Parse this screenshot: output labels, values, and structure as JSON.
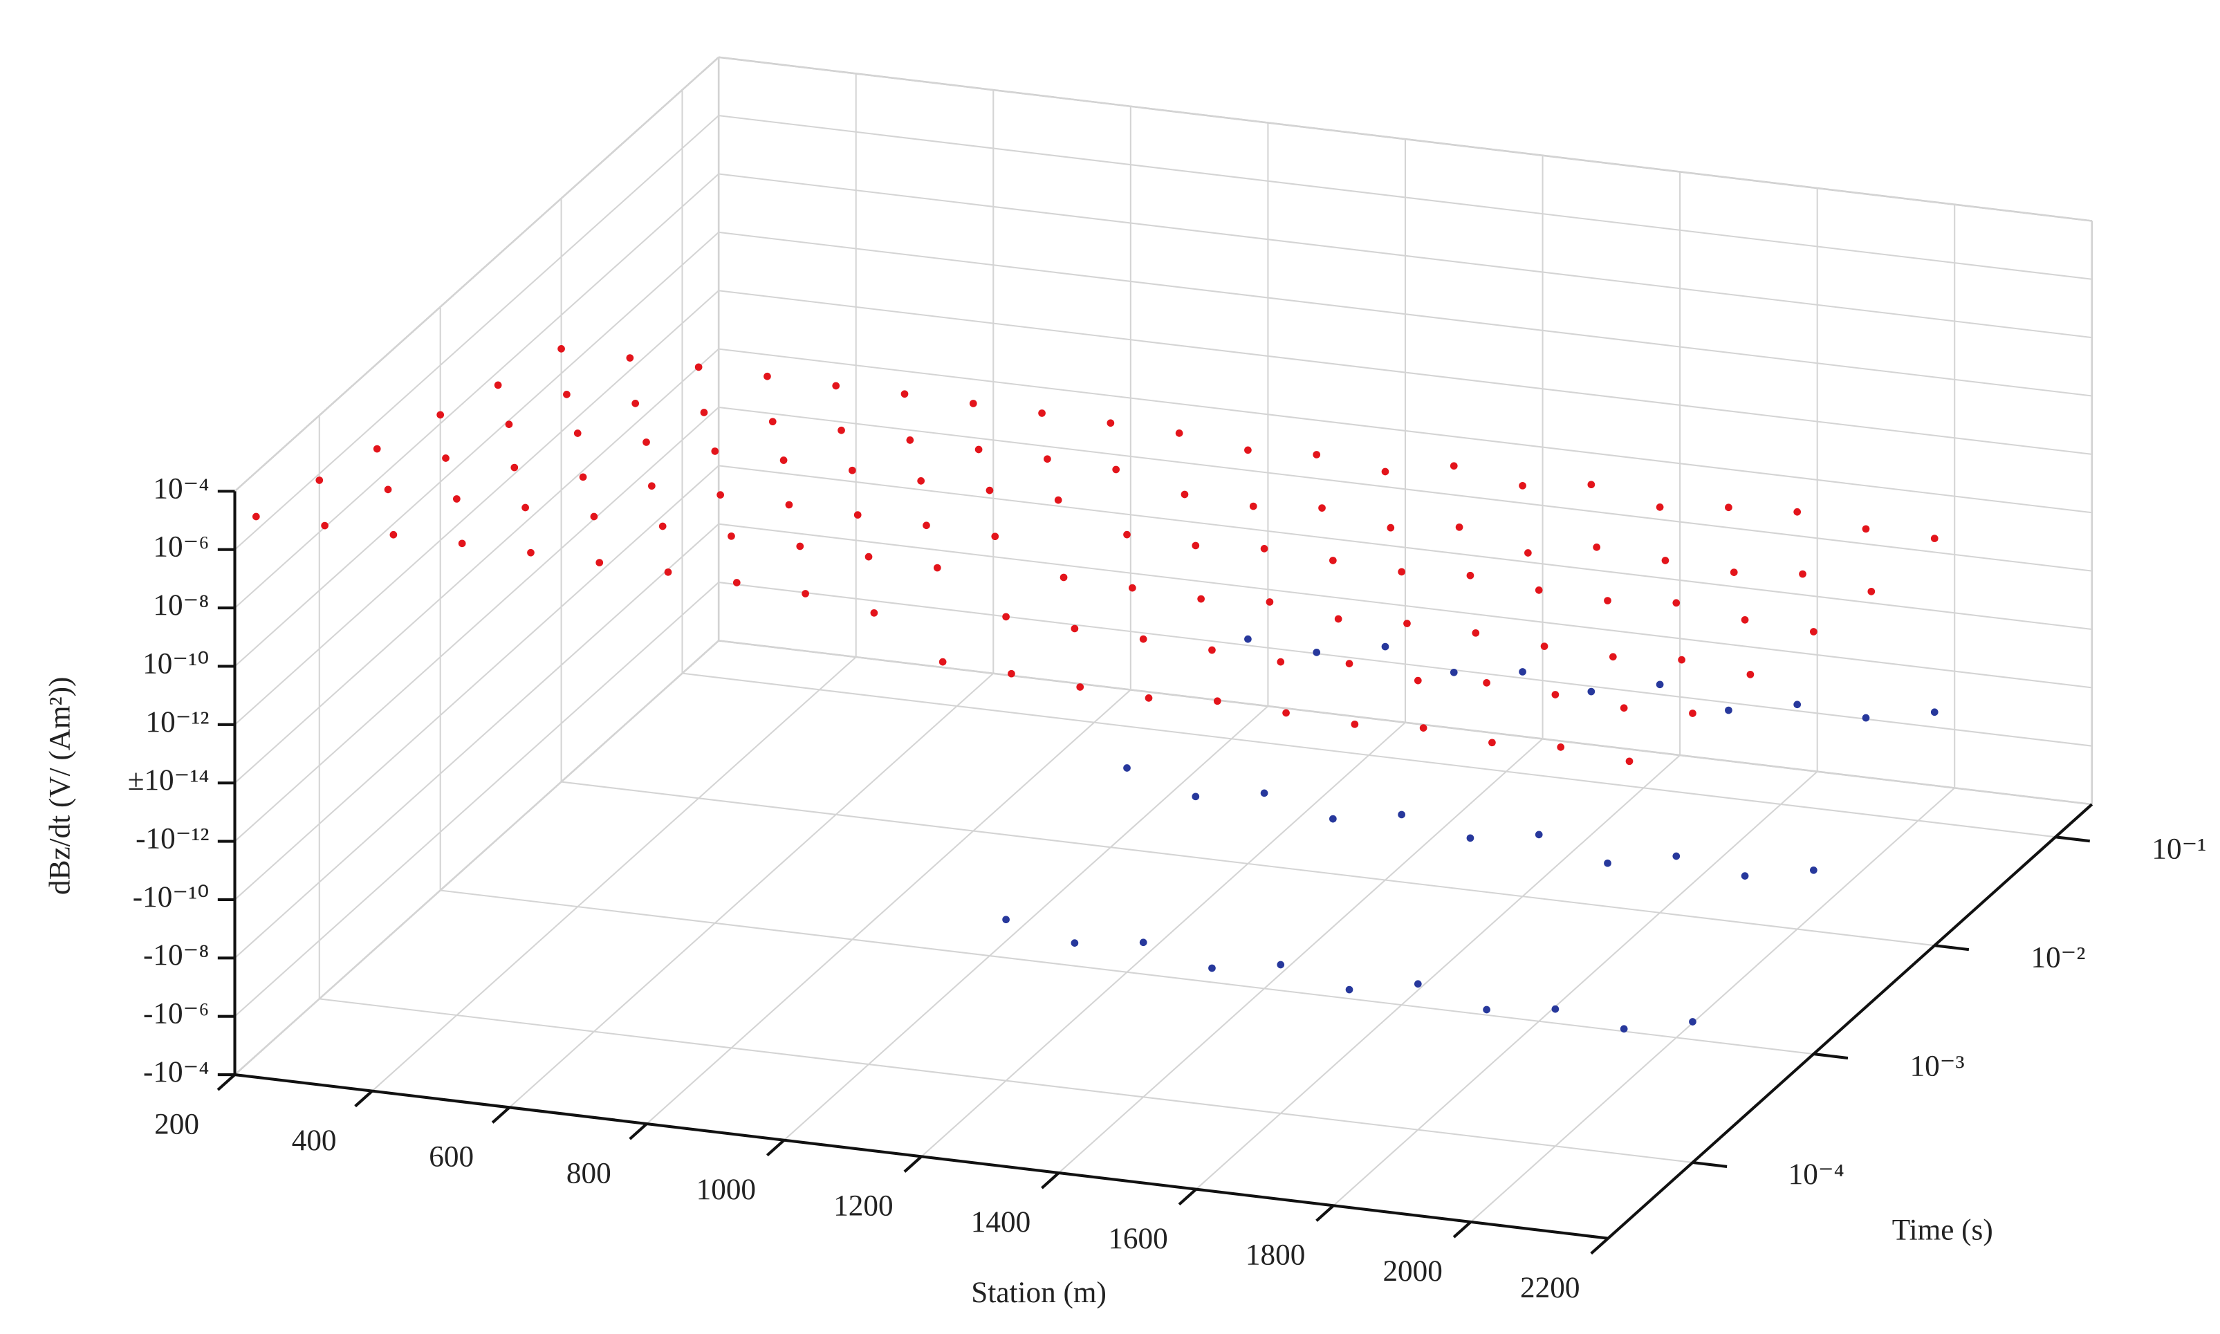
{
  "chart_data": {
    "type": "scatter3d",
    "xlabel": "Station (m)",
    "tlabel": "Time (s)",
    "zlabel": "dBz/dt (V/ (Am²))",
    "xlim": [
      200,
      2200
    ],
    "xticks": [
      200,
      400,
      600,
      800,
      1000,
      1200,
      1400,
      1600,
      1800,
      2000,
      2200
    ],
    "tlim": [
      2e-05,
      0.2
    ],
    "tscale": "log",
    "tticks": [
      {
        "value": 0.0001,
        "label": "10⁻⁴"
      },
      {
        "value": 0.001,
        "label": "10⁻³"
      },
      {
        "value": 0.01,
        "label": "10⁻²"
      },
      {
        "value": 0.1,
        "label": "10⁻¹"
      }
    ],
    "zlim": [
      -0.0001,
      0.0001
    ],
    "zscale": "symlog",
    "zlinthresh": 1e-14,
    "zticks": [
      {
        "value": 0.0001,
        "label": "10⁻⁴"
      },
      {
        "value": 1e-06,
        "label": "10⁻⁶"
      },
      {
        "value": 1e-08,
        "label": "10⁻⁸"
      },
      {
        "value": 1e-10,
        "label": "10⁻¹⁰"
      },
      {
        "value": 1e-12,
        "label": "10⁻¹²"
      },
      {
        "value": 1e-14,
        "label": "±10⁻¹⁴"
      },
      {
        "value": -1e-12,
        "label": "-10⁻¹²"
      },
      {
        "value": -1e-10,
        "label": "-10⁻¹⁰"
      },
      {
        "value": -1e-08,
        "label": "-10⁻⁸"
      },
      {
        "value": -1e-06,
        "label": "-10⁻⁶"
      },
      {
        "value": -0.0001,
        "label": "-10⁻⁴"
      }
    ],
    "grid": true,
    "series": [
      {
        "color": "#e3141b",
        "x": [
          200,
          200,
          200,
          200,
          200,
          200,
          300,
          300,
          300,
          300,
          300,
          300,
          400,
          400,
          400,
          400,
          400,
          400,
          500,
          500,
          500,
          500,
          500,
          500,
          600,
          600,
          600,
          600,
          600,
          600,
          700,
          700,
          700,
          700,
          700,
          700,
          800,
          800,
          800,
          800,
          800,
          800,
          900,
          900,
          900,
          900,
          900,
          900,
          1000,
          1000,
          1000,
          1000,
          1000,
          1000,
          1100,
          1100,
          1100,
          1100,
          1100,
          1100,
          1200,
          1200,
          1200,
          1200,
          1200,
          1200,
          1300,
          1300,
          1300,
          1300,
          1300,
          1300,
          1400,
          1400,
          1400,
          1400,
          1400,
          1400,
          1500,
          1500,
          1500,
          1500,
          1500,
          1500,
          1600,
          1600,
          1600,
          1600,
          1600,
          1600,
          1700,
          1700,
          1700,
          1700,
          1700,
          1700,
          1800,
          1800,
          1800,
          1800,
          1800,
          1800,
          1900,
          1900,
          1900,
          1900,
          1900,
          1900,
          2000,
          2000,
          2000,
          2000,
          2000,
          2000,
          2100,
          2100,
          2100,
          2100,
          2100,
          2100,
          2200,
          2200,
          2200,
          2200,
          2200,
          2200
        ],
        "t": [
          3e-05,
          0.0001,
          0.0003,
          0.001,
          0.003,
          0.01,
          3e-05,
          0.0001,
          0.0003,
          0.001,
          0.003,
          0.01,
          3e-05,
          0.0001,
          0.0003,
          0.001,
          0.003,
          0.01,
          3e-05,
          0.0001,
          0.0003,
          0.001,
          0.003,
          0.01,
          3e-05,
          0.0001,
          0.0003,
          0.001,
          0.003,
          0.01,
          3e-05,
          0.0001,
          0.0003,
          0.001,
          0.003,
          0.01,
          3e-05,
          0.0001,
          0.0003,
          0.001,
          0.003,
          0.01,
          3e-05,
          0.0001,
          0.0003,
          0.001,
          0.003,
          0.01,
          3e-05,
          0.0001,
          0.0003,
          0.001,
          0.003,
          0.01,
          3e-05,
          0.0001,
          0.0003,
          0.001,
          0.003,
          0.01,
          3e-05,
          0.0001,
          0.0003,
          0.001,
          0.003,
          0.01,
          3e-05,
          0.0001,
          0.0003,
          0.001,
          0.003,
          0.01,
          3e-05,
          0.0001,
          0.0003,
          0.001,
          0.003,
          0.01,
          3e-05,
          0.0001,
          0.0003,
          0.001,
          0.003,
          0.01,
          3e-05,
          0.0001,
          0.0003,
          0.001,
          0.003,
          0.01,
          3e-05,
          0.0001,
          0.0003,
          0.001,
          0.003,
          0.01,
          3e-05,
          0.0001,
          0.0003,
          0.001,
          0.003,
          0.01,
          3e-05,
          0.0001,
          0.0003,
          0.001,
          0.003,
          0.01,
          3e-05,
          0.0001,
          0.0003,
          0.001,
          0.003,
          0.01,
          3e-05,
          0.0001,
          0.0003,
          0.001,
          0.003,
          0.01,
          3e-05,
          0.0001,
          0.0003,
          0.001,
          0.003,
          0.01
        ],
        "values": [
          3e-06,
          6e-07,
          1.2e-07,
          2e-08,
          3.5e-09,
          7e-10,
          2.8e-06,
          5.5e-07,
          1.1e-07,
          1.8e-08,
          3.2e-09,
          6.5e-10,
          2.6e-06,
          5e-07,
          1e-07,
          1.7e-08,
          3e-09,
          6e-10,
          2.5e-06,
          4.8e-07,
          9e-08,
          1.6e-08,
          2.8e-09,
          5.5e-10,
          2.3e-06,
          4.5e-07,
          8.5e-08,
          1.5e-08,
          2.6e-09,
          5e-10,
          2e-06,
          4e-07,
          8e-08,
          1.4e-08,
          2.5e-09,
          5e-10,
          1.8e-06,
          3.5e-07,
          7e-08,
          1.2e-08,
          2.2e-09,
          4.5e-10,
          1.5e-06,
          3e-07,
          6e-08,
          1e-08,
          2e-09,
          4e-10,
          1.2e-06,
          2.5e-07,
          5e-08,
          9e-09,
          1.8e-09,
          3.5e-10,
          5e-07,
          2e-07,
          4e-08,
          8e-09,
          1.5e-09,
          3e-10,
          2e-08,
          8e-09,
          3e-09,
          1e-09,
          4e-10,
          1.5e-10,
          1.5e-08,
          6e-09,
          2.5e-09,
          8e-10,
          3e-10,
          2e-10,
          1e-08,
          5e-09,
          2e-09,
          1.2e-09,
          5e-10,
          1e-10,
          8e-09,
          4e-09,
          3e-09,
          9e-10,
          2e-10,
          3e-10,
          1.2e-08,
          3e-09,
          1.5e-09,
          7e-10,
          4e-10,
          1.2e-10,
          9e-09,
          5e-09,
          2e-09,
          1e-09,
          1e-10,
          2.5e-10,
          7e-09,
          2.5e-09,
          1.8e-09,
          6e-10,
          3e-10,
          8e-11,
          1e-08,
          4e-09,
          1.2e-09,
          5e-10,
          2e-10,
          1.5e-10,
          6e-09,
          3e-09,
          1e-09,
          8e-10,
          1.5e-10,
          2e-10,
          8e-09,
          2e-09,
          1.5e-09,
          4e-10,
          2.5e-10,
          1e-10,
          5e-09,
          2.5e-09,
          9e-10,
          3e-10,
          1.2e-10,
          9e-11
        ]
      },
      {
        "color": "#27389c",
        "x": [
          1200,
          1200,
          1200,
          1300,
          1300,
          1300,
          1400,
          1400,
          1400,
          1500,
          1500,
          1500,
          1600,
          1600,
          1600,
          1700,
          1700,
          1700,
          1800,
          1800,
          1800,
          1900,
          1900,
          1900,
          2000,
          2000,
          2000,
          2100,
          2100,
          2100,
          2200,
          2200,
          2200
        ],
        "t": [
          0.0001,
          0.001,
          0.01,
          0.0001,
          0.001,
          0.01,
          0.0001,
          0.001,
          0.01,
          0.0001,
          0.001,
          0.01,
          0.0001,
          0.001,
          0.01,
          0.0001,
          0.001,
          0.01,
          0.0001,
          0.001,
          0.01,
          0.0001,
          0.001,
          0.01,
          0.0001,
          0.001,
          0.01,
          0.0001,
          0.001,
          0.01,
          0.0001,
          0.001,
          0.01
        ],
        "values": [
          -3e-10,
          -1e-11,
          -2e-12,
          -1e-09,
          -5e-11,
          -3e-12,
          -5e-10,
          -2e-11,
          -1e-12,
          -2e-09,
          -8e-11,
          -4e-12,
          -8e-10,
          -3e-11,
          -2e-12,
          -3e-09,
          -1e-10,
          -5e-12,
          -1e-09,
          -4e-11,
          -1.5e-12,
          -4e-09,
          -2e-10,
          -6e-12,
          -2e-09,
          -6e-11,
          -2e-12,
          -5e-09,
          -1.5e-10,
          -3e-12,
          -1.5e-09,
          -5e-11,
          -1e-12
        ]
      }
    ]
  }
}
